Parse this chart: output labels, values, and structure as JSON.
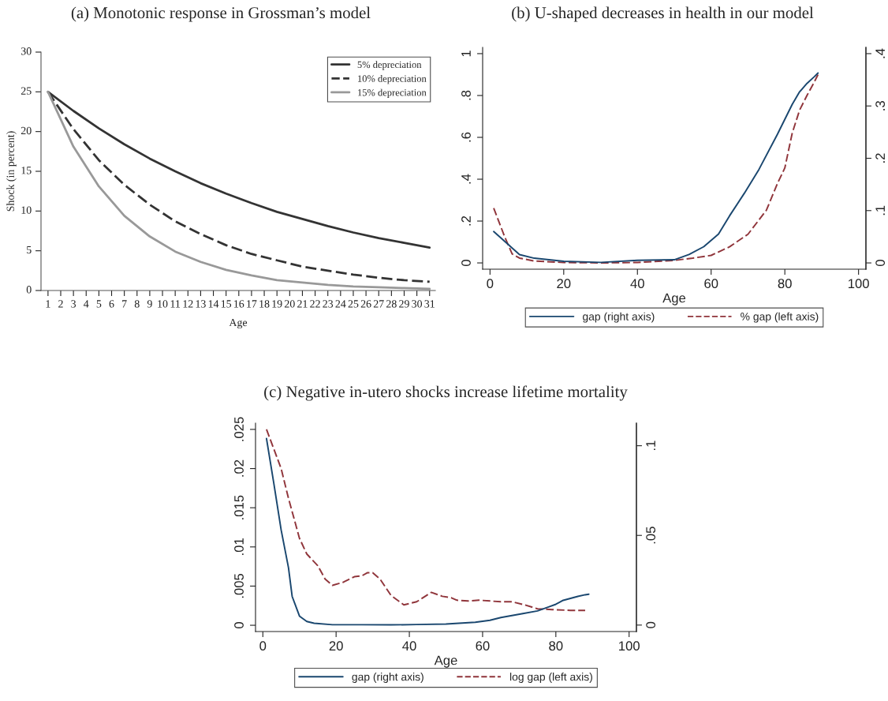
{
  "chart_data": [
    {
      "type": "line",
      "title": "(a) Monotonic response in Grossman’s model",
      "xlabel": "Age",
      "ylabel": "Shock (in percent)",
      "xlim": [
        0.45,
        31.45
      ],
      "xticks": [
        1,
        2,
        3,
        4,
        5,
        6,
        7,
        8,
        9,
        10,
        11,
        12,
        13,
        14,
        15,
        16,
        17,
        18,
        19,
        20,
        21,
        22,
        23,
        24,
        25,
        26,
        27,
        28,
        29,
        30,
        31
      ],
      "ylim": [
        0,
        30
      ],
      "yticks": [
        0,
        5,
        10,
        15,
        20,
        25,
        30
      ],
      "grid": false,
      "legend": "top right",
      "x": [
        1,
        3,
        5,
        7,
        9,
        11,
        13,
        15,
        17,
        19,
        21,
        23,
        25,
        27,
        29,
        31
      ],
      "series": [
        {
          "name": "5% depreciation",
          "color": "#333333",
          "line_style": "solid",
          "values": [
            25,
            22.6,
            20.4,
            18.4,
            16.6,
            15.0,
            13.5,
            12.2,
            11.0,
            9.9,
            9.0,
            8.1,
            7.3,
            6.6,
            6.0,
            5.4
          ]
        },
        {
          "name": "10% depreciation",
          "color": "#333333",
          "line_style": "dashed",
          "values": [
            25,
            20.3,
            16.4,
            13.3,
            10.8,
            8.7,
            7.1,
            5.7,
            4.6,
            3.8,
            3.0,
            2.5,
            2.0,
            1.6,
            1.3,
            1.1
          ]
        },
        {
          "name": "15% depreciation",
          "color": "#999999",
          "line_style": "solid",
          "values": [
            25,
            18.1,
            13.1,
            9.4,
            6.8,
            4.9,
            3.6,
            2.6,
            1.9,
            1.3,
            1.0,
            0.7,
            0.5,
            0.4,
            0.3,
            0.2
          ]
        }
      ]
    },
    {
      "type": "line",
      "title": "(b) U-shaped decreases in health in our model",
      "xlabel": "Age",
      "xlim": [
        -2,
        102
      ],
      "xticks": [
        0,
        20,
        40,
        60,
        80,
        100
      ],
      "ylim": [
        -0.03,
        1.03
      ],
      "yticks": [
        {
          "value": 0,
          "label": "0"
        },
        {
          "value": 0.2,
          "label": ".2"
        },
        {
          "value": 0.4,
          "label": ".4"
        },
        {
          "value": 0.6,
          "label": ".6"
        },
        {
          "value": 0.8,
          "label": ".8"
        },
        {
          "value": 1,
          "label": "1"
        }
      ],
      "y2lim": [
        -0.012,
        0.412
      ],
      "y2ticks": [
        {
          "value": 0,
          "label": "0"
        },
        {
          "value": 0.1,
          "label": ".1"
        },
        {
          "value": 0.2,
          "label": ".2"
        },
        {
          "value": 0.3,
          "label": ".3"
        },
        {
          "value": 0.4,
          "label": ".4"
        }
      ],
      "grid": false,
      "legend": "bottom",
      "series": [
        {
          "name": "gap (right axis)",
          "color": "#1a476f",
          "line_style": "solid",
          "axis": "y2",
          "x": [
            1,
            8,
            12,
            20,
            30,
            40,
            50,
            54,
            58,
            62,
            65,
            69,
            73,
            78,
            82,
            84,
            86,
            88,
            89
          ],
          "values": [
            0.06,
            0.016,
            0.009,
            0.003,
            0.001,
            0.005,
            0.006,
            0.016,
            0.031,
            0.055,
            0.09,
            0.133,
            0.179,
            0.246,
            0.303,
            0.327,
            0.343,
            0.356,
            0.363
          ]
        },
        {
          "name": "% gap (left axis)",
          "color": "#90353b",
          "line_style": "dashed",
          "x": [
            1,
            4,
            6,
            8,
            12,
            20,
            30,
            40,
            50,
            55,
            60,
            65,
            70,
            75,
            78,
            80,
            82,
            84,
            86,
            88,
            89
          ],
          "values": [
            0.262,
            0.124,
            0.043,
            0.023,
            0.009,
            0.002,
            0.0,
            0.002,
            0.012,
            0.023,
            0.036,
            0.077,
            0.137,
            0.252,
            0.38,
            0.454,
            0.62,
            0.73,
            0.8,
            0.865,
            0.9
          ]
        }
      ]
    },
    {
      "type": "line",
      "title": "(c) Negative in-utero shocks increase lifetime mortality",
      "xlabel": "Age",
      "xlim": [
        -2,
        102
      ],
      "xticks": [
        0,
        20,
        40,
        60,
        80,
        100
      ],
      "ylim": [
        -0.0008,
        0.0258
      ],
      "yticks": [
        {
          "value": 0,
          "label": "0"
        },
        {
          "value": 0.005,
          "label": ".005"
        },
        {
          "value": 0.01,
          "label": ".01"
        },
        {
          "value": 0.015,
          "label": ".015"
        },
        {
          "value": 0.02,
          "label": ".02"
        },
        {
          "value": 0.025,
          "label": ".025"
        }
      ],
      "y2lim": [
        -0.0036,
        0.1126
      ],
      "y2ticks": [
        {
          "value": 0,
          "label": "0"
        },
        {
          "value": 0.05,
          "label": ".05"
        },
        {
          "value": 0.1,
          "label": ".1"
        }
      ],
      "grid": false,
      "legend": "bottom",
      "series": [
        {
          "name": "gap (right axis)",
          "color": "#1a476f",
          "line_style": "solid",
          "axis": "y2",
          "x": [
            1,
            3,
            5,
            7,
            8,
            10,
            12,
            14,
            19,
            27,
            35,
            42,
            50,
            58,
            62,
            65,
            71,
            75,
            78,
            80,
            82,
            86,
            88,
            89
          ],
          "values": [
            0.104,
            0.079,
            0.053,
            0.032,
            0.016,
            0.005,
            0.002,
            0.001,
            0.0002,
            0.0002,
            0.0001,
            0.0003,
            0.0006,
            0.0016,
            0.0027,
            0.0042,
            0.0064,
            0.0079,
            0.0101,
            0.0116,
            0.0138,
            0.016,
            0.0169,
            0.0172
          ]
        },
        {
          "name": "log gap (left axis)",
          "color": "#90353b",
          "line_style": "dashed",
          "x": [
            1,
            5,
            7,
            10,
            12,
            15,
            17,
            19,
            22,
            25,
            27,
            28.5,
            30,
            32,
            35,
            38.5,
            42,
            46,
            49,
            51.5,
            53,
            56,
            59,
            65,
            68,
            71.5,
            75,
            79,
            84,
            88
          ],
          "values": [
            0.025,
            0.02,
            0.0162,
            0.0111,
            0.0091,
            0.0076,
            0.0059,
            0.0051,
            0.0055,
            0.0062,
            0.0063,
            0.0067,
            0.0067,
            0.0059,
            0.0038,
            0.0026,
            0.003,
            0.0042,
            0.0037,
            0.0035,
            0.0032,
            0.0031,
            0.0032,
            0.003,
            0.003,
            0.0026,
            0.0021,
            0.002,
            0.0019,
            0.0019
          ]
        }
      ]
    }
  ]
}
